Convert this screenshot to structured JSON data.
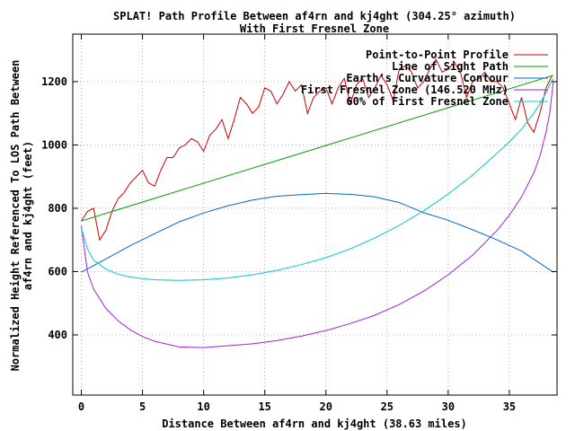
{
  "chart_data": {
    "type": "line",
    "title": "SPLAT! Path Profile Between af4rn and kj4ght (304.25° azimuth)",
    "subtitle": "With First Fresnel Zone",
    "xlabel": "Distance Between af4rn and kj4ght (38.63 miles)",
    "ylabel": "Normalized Height Referenced To LOS Path Between af4rn and kj4ght (feet)",
    "ylabel_lines": [
      "Normalized Height Referenced To LOS Path Between",
      "af4rn and kj4ght (feet)"
    ],
    "xlim": [
      -0.7,
      38.9
    ],
    "ylim": [
      210,
      1350
    ],
    "xticks": [
      0,
      5,
      10,
      15,
      20,
      25,
      30,
      35
    ],
    "yticks": [
      400,
      600,
      800,
      1000,
      1200
    ],
    "grid": true,
    "legend_position": "top-right",
    "series": [
      {
        "name": "Point-to-Point Profile",
        "color": "#cc0000",
        "x": [
          0,
          0.5,
          1.0,
          1.5,
          2.0,
          2.5,
          3.0,
          3.5,
          4.0,
          4.5,
          5.0,
          5.5,
          6.0,
          6.5,
          7.0,
          7.5,
          8.0,
          8.5,
          9.0,
          9.5,
          10.0,
          10.5,
          11.0,
          11.5,
          12.0,
          12.5,
          13.0,
          13.5,
          14.0,
          14.5,
          15.0,
          15.5,
          16.0,
          16.5,
          17.0,
          17.5,
          18.0,
          18.5,
          19.0,
          19.5,
          20.0,
          20.5,
          21.0,
          21.5,
          22.0,
          22.5,
          23.0,
          23.5,
          24.0,
          24.5,
          25.0,
          25.5,
          26.0,
          26.5,
          27.0,
          27.5,
          28.0,
          28.5,
          29.0,
          29.5,
          30.0,
          30.5,
          31.0,
          31.5,
          32.0,
          32.5,
          33.0,
          33.5,
          34.0,
          34.5,
          35.0,
          35.5,
          36.0,
          36.5,
          37.0,
          37.5,
          38.0,
          38.5
        ],
        "values": [
          760,
          790,
          800,
          700,
          730,
          790,
          830,
          850,
          880,
          900,
          920,
          880,
          870,
          920,
          960,
          960,
          990,
          1000,
          1020,
          1010,
          980,
          1030,
          1050,
          1080,
          1020,
          1080,
          1150,
          1130,
          1100,
          1120,
          1180,
          1170,
          1130,
          1160,
          1200,
          1170,
          1190,
          1100,
          1150,
          1170,
          1180,
          1130,
          1180,
          1210,
          1130,
          1190,
          1210,
          1150,
          1180,
          1220,
          1190,
          1140,
          1240,
          1250,
          1230,
          1180,
          1200,
          1240,
          1270,
          1230,
          1240,
          1260,
          1230,
          1150,
          1200,
          1210,
          1230,
          1200,
          1200,
          1180,
          1130,
          1080,
          1150,
          1070,
          1040,
          1100,
          1180,
          1220
        ]
      },
      {
        "name": "Line of Sight Path",
        "color": "#00a000",
        "x": [
          0,
          38.6
        ],
        "values": [
          760,
          1220
        ]
      },
      {
        "name": "Earth's Curvature Contour",
        "color": "#0066cc",
        "x": [
          0,
          2,
          4,
          6,
          8,
          10,
          12,
          14,
          16,
          18,
          20,
          22,
          24,
          26,
          28,
          30,
          32,
          34,
          36,
          38.6
        ],
        "values": [
          598,
          640,
          682,
          720,
          757,
          785,
          808,
          826,
          838,
          843,
          847,
          844,
          836,
          818,
          786,
          762,
          732,
          700,
          665,
          598
        ]
      },
      {
        "name": "First Fresnel Zone (146.520 MHz)",
        "color": "#a020e0",
        "x": [
          0,
          0.5,
          1,
          2,
          3,
          4,
          5,
          6,
          8,
          10,
          12,
          14,
          16,
          18,
          20,
          22,
          24,
          26,
          28,
          30,
          32,
          34,
          35,
          36,
          37,
          37.5,
          38,
          38.3,
          38.6
        ],
        "values": [
          745,
          600,
          545,
          484,
          445,
          416,
          395,
          380,
          362,
          360,
          366,
          372,
          382,
          396,
          414,
          436,
          462,
          496,
          538,
          590,
          652,
          730,
          778,
          836,
          912,
          964,
          1040,
          1100,
          1200
        ]
      },
      {
        "name": "60% of First Fresnel Zone",
        "color": "#00c8d0",
        "x": [
          0,
          0.5,
          1,
          2,
          3,
          4,
          5,
          6,
          8,
          10,
          12,
          14,
          16,
          18,
          20,
          22,
          24,
          26,
          28,
          30,
          32,
          34,
          35,
          36,
          37,
          37.5,
          38,
          38.3,
          38.6
        ],
        "values": [
          738,
          672,
          636,
          608,
          592,
          583,
          578,
          574,
          572,
          574,
          580,
          590,
          604,
          622,
          644,
          672,
          706,
          746,
          792,
          845,
          905,
          974,
          1010,
          1050,
          1100,
          1130,
          1165,
          1190,
          1210
        ]
      }
    ]
  }
}
